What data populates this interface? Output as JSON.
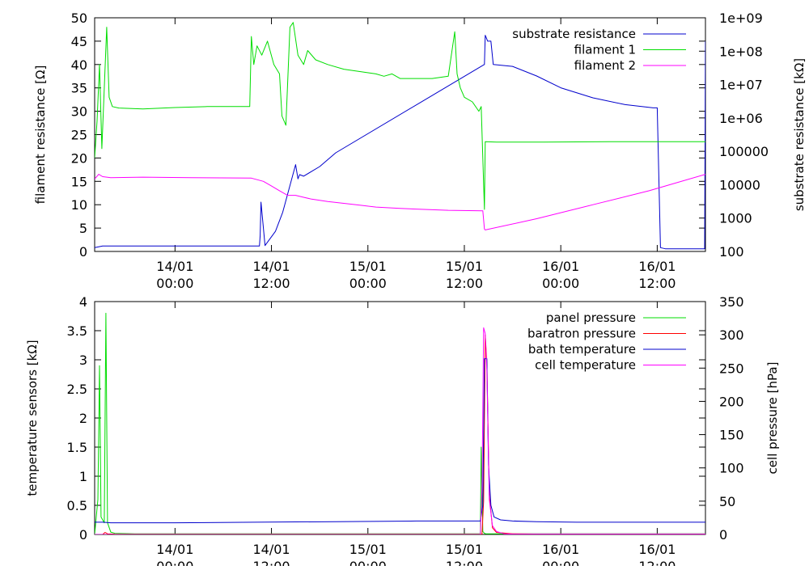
{
  "chart_data": [
    {
      "type": "line",
      "title": "",
      "ylabel": "filament resistance [Ω]",
      "y2label": "substrate resistance [kΩ]",
      "y2scale": "log",
      "xlim": [
        0,
        76
      ],
      "ylim": [
        0,
        50
      ],
      "y2lim": [
        100,
        1000000000
      ],
      "x_ticks": [
        {
          "x": 10,
          "line1": "14/01",
          "line2": "00:00"
        },
        {
          "x": 22,
          "line1": "14/01",
          "line2": "12:00"
        },
        {
          "x": 34,
          "line1": "15/01",
          "line2": "00:00"
        },
        {
          "x": 46,
          "line1": "15/01",
          "line2": "12:00"
        },
        {
          "x": 58,
          "line1": "16/01",
          "line2": "00:00"
        },
        {
          "x": 70,
          "line1": "16/01",
          "line2": "12:00"
        }
      ],
      "y_ticks": [
        "0",
        "5",
        "10",
        "15",
        "20",
        "25",
        "30",
        "35",
        "40",
        "45",
        "50"
      ],
      "y2_ticks": [
        "100",
        "1000",
        "10000",
        "100000",
        "1e+06",
        "1e+07",
        "1e+08",
        "1e+09"
      ],
      "legend_position": "top-right",
      "series": [
        {
          "name": "substrate resistance",
          "axis": "y2",
          "color": "#0000cc",
          "x": [
            0,
            1,
            19.5,
            20.5,
            20.6,
            20.7,
            21.2,
            22.5,
            23.4,
            25,
            25.3,
            25.5,
            26,
            28,
            30,
            48.5,
            48.6,
            48.9,
            49.3,
            49.6,
            52,
            55,
            58,
            62,
            66,
            69.5,
            69.6,
            70,
            70.4,
            71,
            75,
            75.9,
            76
          ],
          "y": [
            130,
            145,
            145,
            145,
            300,
            3000,
            150,
            400,
            1500,
            40000,
            15000,
            20000,
            18000,
            35000,
            90000,
            40000000,
            300000000,
            200000000,
            200000000,
            40000000,
            35000000,
            18000000,
            8000000,
            4000000,
            2500000,
            2000000,
            2000000,
            2000000,
            130,
            120,
            120,
            120,
            200000000
          ]
        },
        {
          "name": "filament 1",
          "axis": "y",
          "color": "#00dd00",
          "x": [
            0,
            0.3,
            0.6,
            0.9,
            1.2,
            1.5,
            1.8,
            2.2,
            3,
            6,
            10,
            14,
            19.3,
            19.5,
            19.8,
            20.2,
            20.8,
            21.5,
            22.3,
            23,
            23.3,
            23.8,
            24.3,
            24.7,
            25.3,
            26,
            26.5,
            27.5,
            29,
            31,
            33,
            35,
            36,
            37,
            38,
            40,
            42,
            44,
            44.8,
            45.1,
            45.5,
            46,
            47,
            47.8,
            48.1,
            48.3,
            48.5,
            48.6,
            50,
            56,
            64,
            76
          ],
          "y": [
            20,
            28,
            40,
            22,
            35,
            48,
            33,
            31,
            30.7,
            30.5,
            30.8,
            31,
            31,
            46,
            40,
            44,
            42,
            45,
            40,
            38,
            29,
            27,
            48,
            49,
            42,
            40,
            43,
            41,
            40,
            39,
            38.5,
            38,
            37.5,
            38,
            37,
            37,
            37,
            37.5,
            47,
            38,
            35,
            33,
            32,
            30,
            31,
            20,
            9,
            23.5,
            23.4,
            23.4,
            23.5,
            23.5
          ]
        },
        {
          "name": "filament 2",
          "axis": "y",
          "color": "#ff00ff",
          "x": [
            0,
            0.5,
            1,
            2,
            6,
            12,
            19.5,
            21,
            22,
            23,
            24,
            25,
            26,
            27,
            29,
            31,
            33,
            35,
            38,
            41,
            44,
            48.3,
            48.5,
            48.6,
            55,
            62,
            69,
            76
          ],
          "y": [
            15.5,
            16.5,
            16,
            15.8,
            15.9,
            15.8,
            15.7,
            15,
            14,
            13,
            12,
            12,
            11.6,
            11.2,
            10.7,
            10.3,
            9.9,
            9.5,
            9.2,
            9,
            8.8,
            8.7,
            4.8,
            4.6,
            7,
            10,
            13,
            16.5
          ]
        }
      ]
    },
    {
      "type": "line",
      "title": "",
      "ylabel": "temperature sensors [kΩ]",
      "y2label": "cell pressure [hPa]",
      "xlim": [
        0,
        76
      ],
      "ylim": [
        0,
        4
      ],
      "y2lim": [
        0,
        350
      ],
      "x_ticks": [
        {
          "x": 10,
          "line1": "14/01",
          "line2": "00:00"
        },
        {
          "x": 22,
          "line1": "14/01",
          "line2": "12:00"
        },
        {
          "x": 34,
          "line1": "15/01",
          "line2": "00:00"
        },
        {
          "x": 46,
          "line1": "15/01",
          "line2": "12:00"
        },
        {
          "x": 58,
          "line1": "16/01",
          "line2": "00:00"
        },
        {
          "x": 70,
          "line1": "16/01",
          "line2": "12:00"
        }
      ],
      "y_ticks": [
        "0",
        "0.5",
        "1",
        "1.5",
        "2",
        "2.5",
        "3",
        "3.5",
        "4"
      ],
      "y2_ticks": [
        "0",
        "50",
        "100",
        "150",
        "200",
        "250",
        "300",
        "350"
      ],
      "legend_position": "top-right",
      "series": [
        {
          "name": "panel pressure",
          "axis": "y",
          "color": "#00dd00",
          "x": [
            0,
            0.4,
            0.6,
            0.8,
            1.2,
            1.4,
            1.6,
            2,
            2.5,
            5,
            20,
            40,
            48,
            48.1,
            48.3,
            48.5,
            48.7,
            49,
            50,
            56,
            64,
            76
          ],
          "y": [
            0,
            0.6,
            2.9,
            0.3,
            0.2,
            3.8,
            0.2,
            0.04,
            0.02,
            0.01,
            0.01,
            0.01,
            0.01,
            1.5,
            0.05,
            0.02,
            0.01,
            0.01,
            0.01,
            0.01,
            0.01,
            0.01
          ]
        },
        {
          "name": "baratron pressure",
          "axis": "y2",
          "color": "#ff0000",
          "x": [
            0,
            1,
            1.3,
            1.6,
            2.5,
            5,
            20,
            40,
            48.2,
            48.4,
            48.6,
            48.8,
            49.1,
            49.5,
            50,
            52,
            56,
            76
          ],
          "y": [
            0,
            0,
            3,
            1,
            0.5,
            0.3,
            0.3,
            0.3,
            0.3,
            50,
            300,
            260,
            60,
            10,
            3,
            1,
            0.5,
            0.5
          ]
        },
        {
          "name": "bath temperature",
          "axis": "y",
          "color": "#0000cc",
          "x": [
            0,
            1,
            2,
            10,
            20,
            30,
            40,
            48,
            48.3,
            48.5,
            48.8,
            49,
            49.3,
            49.7,
            50.5,
            52,
            55,
            60,
            70,
            76
          ],
          "y": [
            0.21,
            0.21,
            0.2,
            0.2,
            0.21,
            0.22,
            0.23,
            0.23,
            0.5,
            3.02,
            3.02,
            1.2,
            0.5,
            0.3,
            0.25,
            0.23,
            0.22,
            0.21,
            0.21,
            0.21
          ]
        },
        {
          "name": "cell temperature",
          "axis": "y",
          "color": "#ff00ff",
          "x": [
            0,
            1,
            2,
            48,
            48.2,
            48.4,
            48.6,
            48.8,
            49.1,
            49.5,
            50,
            51,
            52,
            76
          ],
          "y": [
            0,
            0,
            0,
            0,
            0.8,
            3.55,
            3.45,
            2.8,
            0.6,
            0.15,
            0.05,
            0.01,
            0.005,
            0.005
          ]
        }
      ]
    }
  ]
}
